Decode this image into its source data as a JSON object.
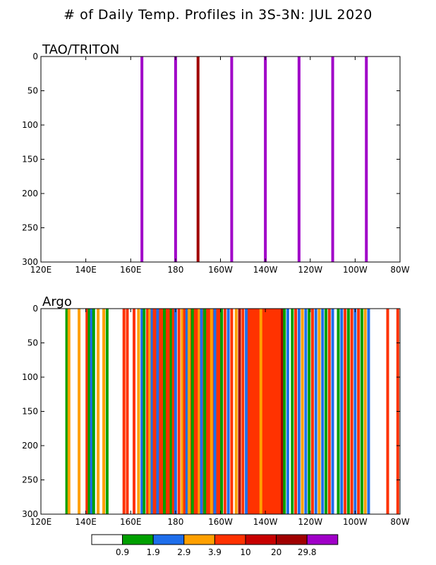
{
  "title": "# of Daily Temp. Profiles in 3S-3N: JUL 2020",
  "chart_data": [
    {
      "type": "bar",
      "panel": "TAO/TRITON",
      "xlabel": "",
      "ylabel": "",
      "xlim": [
        120,
        280
      ],
      "ylim": [
        0,
        300
      ],
      "y_inverted": true,
      "x_ticks": [
        {
          "v": 120,
          "label": "120E"
        },
        {
          "v": 140,
          "label": "140E"
        },
        {
          "v": 160,
          "label": "160E"
        },
        {
          "v": 180,
          "label": "180"
        },
        {
          "v": 200,
          "label": "160W"
        },
        {
          "v": 220,
          "label": "140W"
        },
        {
          "v": 240,
          "label": "120W"
        },
        {
          "v": 260,
          "label": "100W"
        },
        {
          "v": 280,
          "label": "80W"
        }
      ],
      "y_ticks": [
        0,
        50,
        100,
        150,
        200,
        250,
        300
      ],
      "bars": [
        {
          "lon": 165,
          "color": "#a000c8"
        },
        {
          "lon": 180,
          "color": "#a000c8"
        },
        {
          "lon": 190,
          "color": "#a00000"
        },
        {
          "lon": 205,
          "color": "#a000c8"
        },
        {
          "lon": 220,
          "color": "#a000c8"
        },
        {
          "lon": 235,
          "color": "#a000c8"
        },
        {
          "lon": 250,
          "color": "#a000c8"
        },
        {
          "lon": 265,
          "color": "#a000c8"
        }
      ]
    },
    {
      "type": "bar",
      "panel": "Argo",
      "xlabel": "",
      "ylabel": "",
      "xlim": [
        120,
        280
      ],
      "ylim": [
        0,
        300
      ],
      "y_inverted": true,
      "x_ticks": [
        {
          "v": 120,
          "label": "120E"
        },
        {
          "v": 140,
          "label": "140E"
        },
        {
          "v": 160,
          "label": "160E"
        },
        {
          "v": 180,
          "label": "180"
        },
        {
          "v": 200,
          "label": "160W"
        },
        {
          "v": 220,
          "label": "140W"
        },
        {
          "v": 240,
          "label": "120W"
        },
        {
          "v": 260,
          "label": "100W"
        },
        {
          "v": 280,
          "label": "80W"
        }
      ],
      "y_ticks": [
        0,
        50,
        100,
        150,
        200,
        250,
        300
      ],
      "bars": [
        {
          "lon": 131.5,
          "color": "#00a000"
        },
        {
          "lon": 132.5,
          "color": "#ffa000"
        },
        {
          "lon": 137.0,
          "color": "#ffa000"
        },
        {
          "lon": 140.5,
          "color": "#ff3200"
        },
        {
          "lon": 141.5,
          "color": "#00a000"
        },
        {
          "lon": 142.5,
          "color": "#1e6eeb"
        },
        {
          "lon": 143.5,
          "color": "#00a000"
        },
        {
          "lon": 145.5,
          "color": "#ffa000"
        },
        {
          "lon": 148.0,
          "color": "#ffa000"
        },
        {
          "lon": 149.5,
          "color": "#00a000"
        },
        {
          "lon": 157.0,
          "color": "#ff3200"
        },
        {
          "lon": 158.5,
          "color": "#ff3200"
        },
        {
          "lon": 161.5,
          "color": "#ff3200"
        },
        {
          "lon": 163.5,
          "color": "#ffa000"
        },
        {
          "lon": 165.0,
          "color": "#1e6eeb"
        },
        {
          "lon": 166.0,
          "color": "#00a000"
        },
        {
          "lon": 167.5,
          "color": "#ff3200"
        },
        {
          "lon": 168.5,
          "color": "#ffa000"
        },
        {
          "lon": 169.5,
          "color": "#1e6eeb"
        },
        {
          "lon": 170.5,
          "color": "#ff3200"
        },
        {
          "lon": 172.0,
          "color": "#1e6eeb"
        },
        {
          "lon": 173.5,
          "color": "#ff3200"
        },
        {
          "lon": 175.0,
          "color": "#00a000"
        },
        {
          "lon": 176.5,
          "color": "#ff3200"
        },
        {
          "lon": 178.0,
          "color": "#00a000"
        },
        {
          "lon": 179.0,
          "color": "#ff3200"
        },
        {
          "lon": 180.0,
          "color": "#1e6eeb"
        },
        {
          "lon": 181.5,
          "color": "#ff3200"
        },
        {
          "lon": 183.0,
          "color": "#ffa000"
        },
        {
          "lon": 184.0,
          "color": "#ff3200"
        },
        {
          "lon": 185.0,
          "color": "#1e6eeb"
        },
        {
          "lon": 186.0,
          "color": "#ffa000"
        },
        {
          "lon": 187.5,
          "color": "#00a000"
        },
        {
          "lon": 189.0,
          "color": "#ff3200"
        },
        {
          "lon": 190.5,
          "color": "#ffa000"
        },
        {
          "lon": 191.5,
          "color": "#1e6eeb"
        },
        {
          "lon": 193.0,
          "color": "#00a000"
        },
        {
          "lon": 194.5,
          "color": "#ff3200"
        },
        {
          "lon": 196.0,
          "color": "#ffa000"
        },
        {
          "lon": 197.5,
          "color": "#1e6eeb"
        },
        {
          "lon": 199.0,
          "color": "#ff3200"
        },
        {
          "lon": 200.5,
          "color": "#00a000"
        },
        {
          "lon": 202.0,
          "color": "#ff3200"
        },
        {
          "lon": 203.5,
          "color": "#1e6eeb"
        },
        {
          "lon": 205.0,
          "color": "#ff3200"
        },
        {
          "lon": 207.0,
          "color": "#ffa000"
        },
        {
          "lon": 208.5,
          "color": "#a00000"
        },
        {
          "lon": 210.0,
          "color": "#ff3200"
        },
        {
          "lon": 211.5,
          "color": "#1e6eeb"
        },
        {
          "lon": 213.0,
          "color": "#ff3200"
        },
        {
          "lon": 215.5,
          "color": "#ff3200"
        },
        {
          "lon": 218.0,
          "color": "#ffa000"
        },
        {
          "lon": 220.5,
          "color": "#ff3200"
        },
        {
          "lon": 223.0,
          "color": "#ff3200"
        },
        {
          "lon": 225.5,
          "color": "#ff3200"
        },
        {
          "lon": 227.5,
          "color": "#a00000"
        },
        {
          "lon": 228.5,
          "color": "#00a000"
        },
        {
          "lon": 230.0,
          "color": "#1e6eeb"
        },
        {
          "lon": 232.0,
          "color": "#00a000"
        },
        {
          "lon": 233.5,
          "color": "#ff3200"
        },
        {
          "lon": 235.0,
          "color": "#1e6eeb"
        },
        {
          "lon": 236.5,
          "color": "#ffa000"
        },
        {
          "lon": 238.0,
          "color": "#1e6eeb"
        },
        {
          "lon": 239.5,
          "color": "#00a000"
        },
        {
          "lon": 241.0,
          "color": "#ff3200"
        },
        {
          "lon": 242.5,
          "color": "#1e6eeb"
        },
        {
          "lon": 244.0,
          "color": "#ffa000"
        },
        {
          "lon": 245.5,
          "color": "#1e6eeb"
        },
        {
          "lon": 247.0,
          "color": "#00a000"
        },
        {
          "lon": 248.5,
          "color": "#ff3200"
        },
        {
          "lon": 250.0,
          "color": "#1e6eeb"
        },
        {
          "lon": 252.5,
          "color": "#00a000"
        },
        {
          "lon": 254.0,
          "color": "#1e6eeb"
        },
        {
          "lon": 255.5,
          "color": "#ff3200"
        },
        {
          "lon": 257.0,
          "color": "#00a000"
        },
        {
          "lon": 258.5,
          "color": "#ff3200"
        },
        {
          "lon": 260.0,
          "color": "#1e6eeb"
        },
        {
          "lon": 261.5,
          "color": "#ff3200"
        },
        {
          "lon": 263.0,
          "color": "#00a000"
        },
        {
          "lon": 264.5,
          "color": "#ffa000"
        },
        {
          "lon": 266.0,
          "color": "#1e6eeb"
        },
        {
          "lon": 274.5,
          "color": "#ff3200"
        },
        {
          "lon": 279.0,
          "color": "#ff3200"
        }
      ],
      "bands": [
        {
          "from": 169.0,
          "to": 180.0,
          "color": "#ff3200"
        },
        {
          "from": 212.0,
          "to": 228.0,
          "color": "#ff3200"
        },
        {
          "from": 186.0,
          "to": 200.0,
          "color": "#ff3200"
        }
      ]
    }
  ],
  "colorbar": {
    "colors": [
      "#ffffff",
      "#00a000",
      "#1e6eeb",
      "#ffa000",
      "#ff3200",
      "#c80000",
      "#a00000",
      "#a000c8"
    ],
    "labels": [
      "0.9",
      "1.9",
      "2.9",
      "3.9",
      "10",
      "20",
      "29.8"
    ]
  }
}
